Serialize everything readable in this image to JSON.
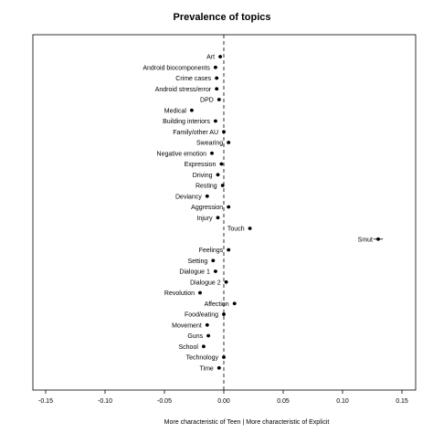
{
  "chart_data": {
    "type": "scatter",
    "title": "Prevalence of topics",
    "xlabel": "More characteristic of Teen | More characteristic of Explicit",
    "ylabel": "",
    "xlim": [
      -0.155,
      0.155
    ],
    "x_ticks": [
      -0.15,
      -0.1,
      -0.05,
      0.0,
      0.05,
      0.1,
      0.15
    ],
    "x_tick_labels": [
      "-0.15",
      "-0.10",
      "-0.05",
      "0.00",
      "0.05",
      "0.10",
      "0.15"
    ],
    "reference_line": {
      "x": 0.0,
      "style": "dashed"
    },
    "error_bars": true,
    "grid": false,
    "legend": "none",
    "points": [
      {
        "label": "Art",
        "x": -0.003
      },
      {
        "label": "Android biocomponents",
        "x": -0.007
      },
      {
        "label": "Crime cases",
        "x": -0.006
      },
      {
        "label": "Android stress/error",
        "x": -0.006
      },
      {
        "label": "DPD",
        "x": -0.004
      },
      {
        "label": "Medical",
        "x": -0.027
      },
      {
        "label": "Building interiors",
        "x": -0.007
      },
      {
        "label": "Family/other AU",
        "x": 0.0
      },
      {
        "label": "Swearing",
        "x": 0.004
      },
      {
        "label": "Negative emotion",
        "x": -0.01
      },
      {
        "label": "Expression",
        "x": -0.002
      },
      {
        "label": "Driving",
        "x": -0.005
      },
      {
        "label": "Resting",
        "x": -0.001
      },
      {
        "label": "Deviancy",
        "x": -0.014
      },
      {
        "label": "Aggression",
        "x": 0.004
      },
      {
        "label": "Injury",
        "x": -0.005
      },
      {
        "label": "Touch",
        "x": 0.022
      },
      {
        "label": "Smut",
        "x": 0.13,
        "xerr": 0.004
      },
      {
        "label": "Feelings",
        "x": 0.004
      },
      {
        "label": "Setting",
        "x": -0.009
      },
      {
        "label": "Dialogue 1",
        "x": -0.007
      },
      {
        "label": "Dialogue 2",
        "x": 0.002
      },
      {
        "label": "Revolution",
        "x": -0.02
      },
      {
        "label": "Affection",
        "x": 0.009
      },
      {
        "label": "Food/eating",
        "x": 0.0
      },
      {
        "label": "Movement",
        "x": -0.014
      },
      {
        "label": "Guns",
        "x": -0.013
      },
      {
        "label": "School",
        "x": -0.017
      },
      {
        "label": "Technology",
        "x": 0.0
      },
      {
        "label": "Time",
        "x": -0.004
      }
    ]
  }
}
